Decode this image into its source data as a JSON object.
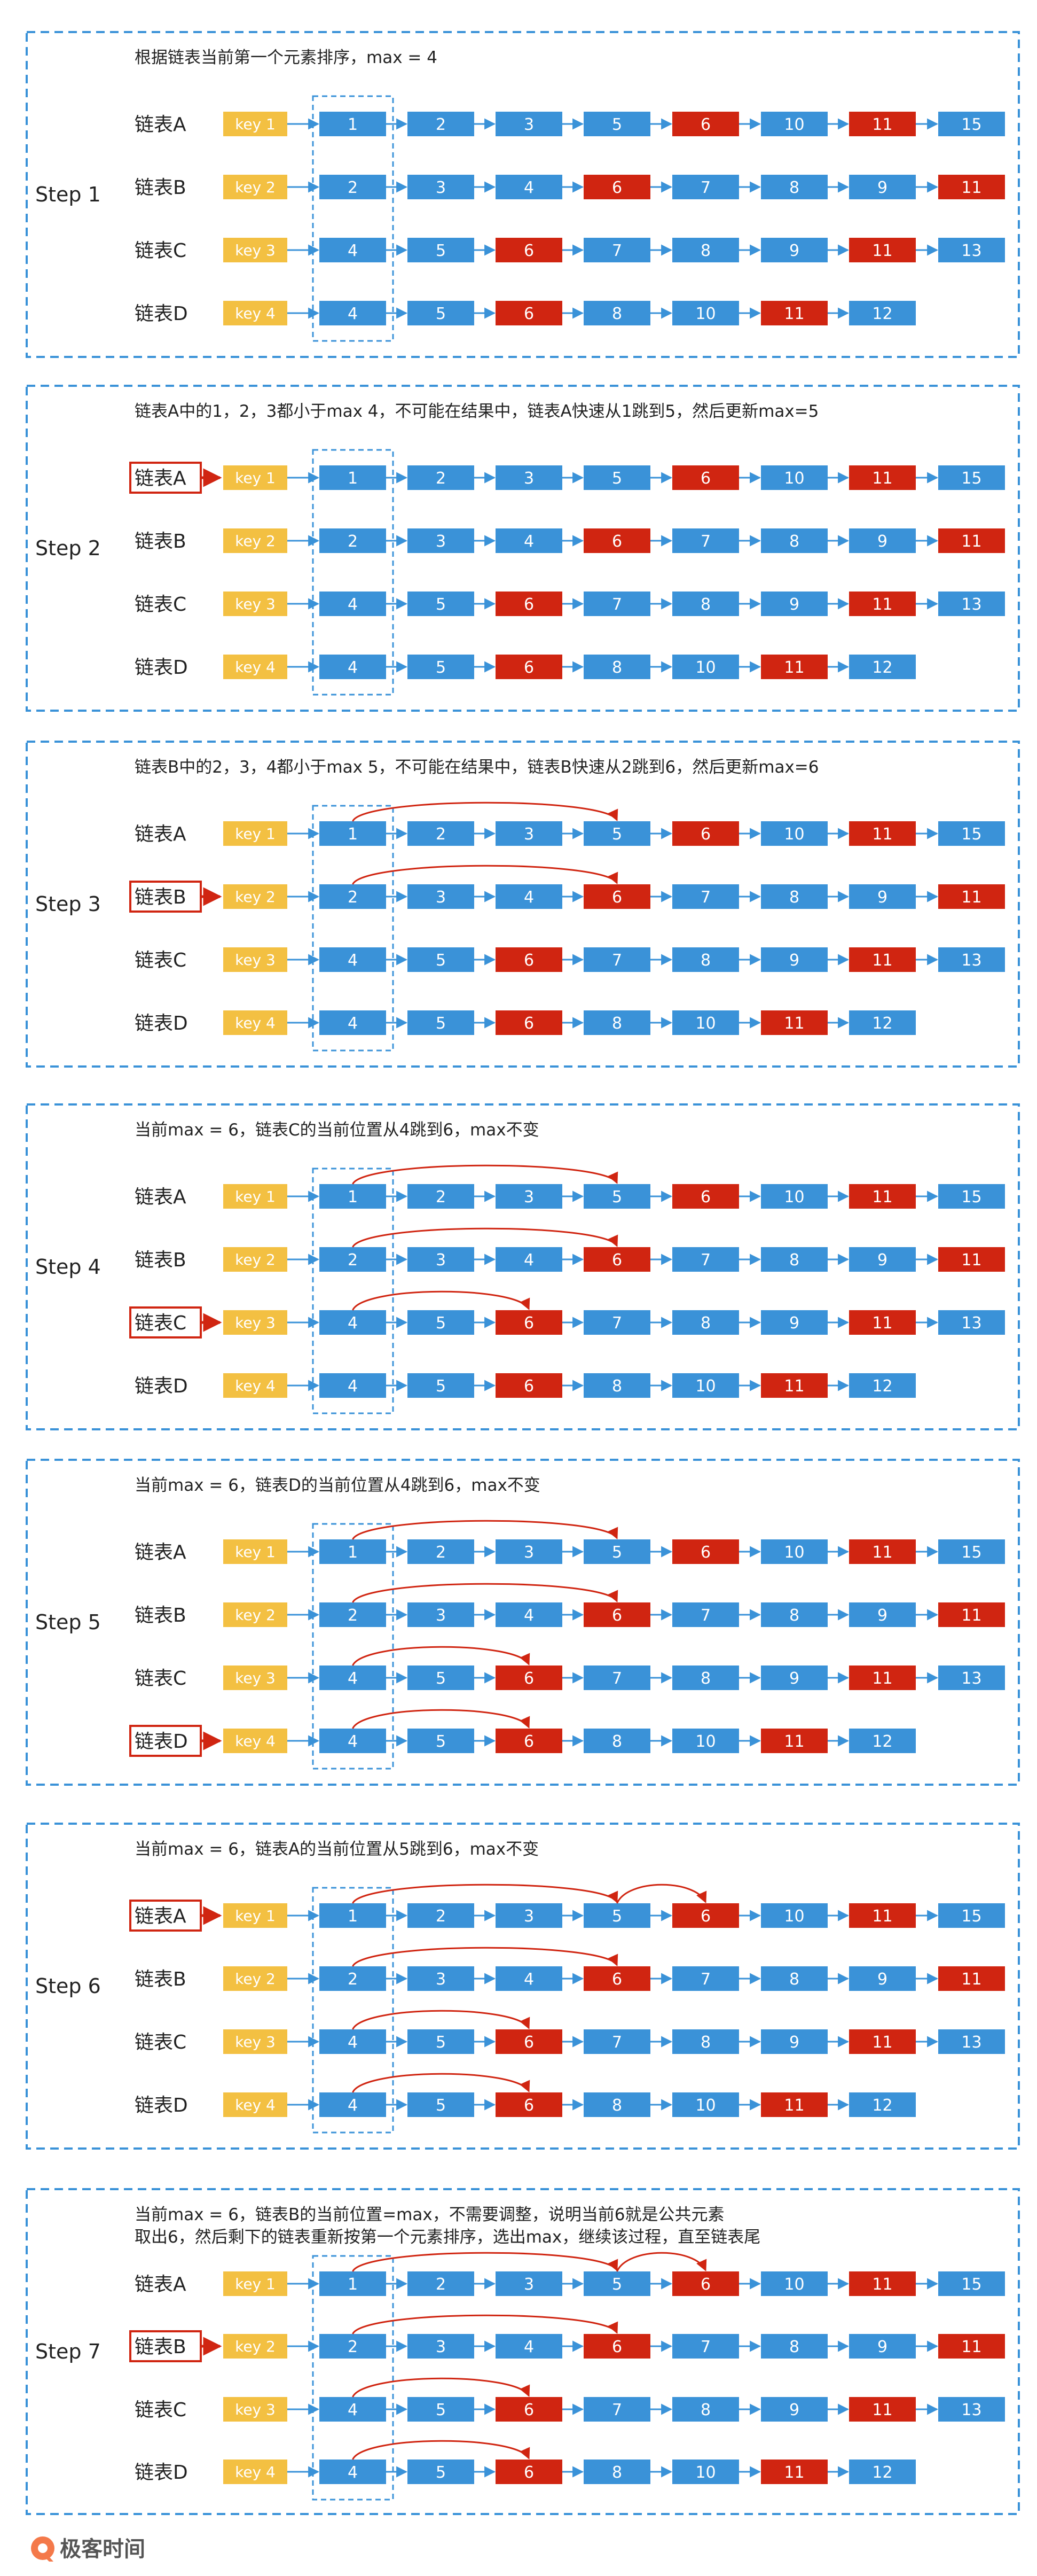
{
  "colors": {
    "node_blue": "#3a92d8",
    "node_red": "#d02511",
    "key_yellow": "#f3c042",
    "border_blue": "#3a92d8",
    "arrow_blue": "#3a92d8",
    "jump_red": "#d02511",
    "highlight_red": "#d02511",
    "text_dark": "#222222",
    "logo_orange": "#f4794a"
  },
  "lists": [
    {
      "name": "链表A",
      "key": "key 1",
      "nodes": [
        {
          "v": "1",
          "red": false
        },
        {
          "v": "2",
          "red": false
        },
        {
          "v": "3",
          "red": false
        },
        {
          "v": "5",
          "red": false
        },
        {
          "v": "6",
          "red": true
        },
        {
          "v": "10",
          "red": false
        },
        {
          "v": "11",
          "red": true
        },
        {
          "v": "15",
          "red": false
        }
      ]
    },
    {
      "name": "链表B",
      "key": "key 2",
      "nodes": [
        {
          "v": "2",
          "red": false
        },
        {
          "v": "3",
          "red": false
        },
        {
          "v": "4",
          "red": false
        },
        {
          "v": "6",
          "red": true
        },
        {
          "v": "7",
          "red": false
        },
        {
          "v": "8",
          "red": false
        },
        {
          "v": "9",
          "red": false
        },
        {
          "v": "11",
          "red": true
        }
      ]
    },
    {
      "name": "链表C",
      "key": "key 3",
      "nodes": [
        {
          "v": "4",
          "red": false
        },
        {
          "v": "5",
          "red": false
        },
        {
          "v": "6",
          "red": true
        },
        {
          "v": "7",
          "red": false
        },
        {
          "v": "8",
          "red": false
        },
        {
          "v": "9",
          "red": false
        },
        {
          "v": "11",
          "red": true
        },
        {
          "v": "13",
          "red": false
        }
      ]
    },
    {
      "name": "链表D",
      "key": "key 4",
      "nodes": [
        {
          "v": "4",
          "red": false
        },
        {
          "v": "5",
          "red": false
        },
        {
          "v": "6",
          "red": true
        },
        {
          "v": "8",
          "red": false
        },
        {
          "v": "10",
          "red": false
        },
        {
          "v": "11",
          "red": true
        },
        {
          "v": "12",
          "red": false
        }
      ]
    }
  ],
  "steps": [
    {
      "label": "Step 1",
      "lines": [
        "根据链表当前第一个元素排序，max = 4"
      ],
      "highlight": null,
      "jumps": []
    },
    {
      "label": "Step 2",
      "lines": [
        "链表A中的1，2，3都小于max 4，不可能在结果中，链表A快速从1跳到5，然后更新max=5"
      ],
      "highlight": 0,
      "jumps": []
    },
    {
      "label": "Step 3",
      "lines": [
        "链表B中的2，3，4都小于max 5，不可能在结果中，链表B快速从2跳到6，然后更新max=6"
      ],
      "highlight": 1,
      "jumps": [
        [
          0,
          0,
          3
        ],
        [
          1,
          0,
          3
        ]
      ]
    },
    {
      "label": "Step 4",
      "lines": [
        "当前max = 6，链表C的当前位置从4跳到6，max不变"
      ],
      "highlight": 2,
      "jumps": [
        [
          0,
          0,
          3
        ],
        [
          1,
          0,
          3
        ],
        [
          2,
          0,
          2
        ]
      ]
    },
    {
      "label": "Step 5",
      "lines": [
        "当前max = 6，链表D的当前位置从4跳到6，max不变"
      ],
      "highlight": 3,
      "jumps": [
        [
          0,
          0,
          3
        ],
        [
          1,
          0,
          3
        ],
        [
          2,
          0,
          2
        ],
        [
          3,
          0,
          2
        ]
      ]
    },
    {
      "label": "Step 6",
      "lines": [
        "当前max = 6，链表A的当前位置从5跳到6，max不变"
      ],
      "highlight": 0,
      "jumps": [
        [
          0,
          0,
          3
        ],
        [
          0,
          3,
          4
        ],
        [
          1,
          0,
          3
        ],
        [
          2,
          0,
          2
        ],
        [
          3,
          0,
          2
        ]
      ]
    },
    {
      "label": "Step 7",
      "lines": [
        "当前max = 6，链表B的当前位置=max，不需要调整，说明当前6就是公共元素",
        "取出6，然后剩下的链表重新按第一个元素排序，选出max，继续该过程，直至链表尾"
      ],
      "highlight": 1,
      "jumps": [
        [
          0,
          0,
          3
        ],
        [
          0,
          3,
          4
        ],
        [
          1,
          0,
          3
        ],
        [
          2,
          0,
          2
        ],
        [
          3,
          0,
          2
        ]
      ]
    }
  ],
  "logo": {
    "text": "极客时间"
  }
}
